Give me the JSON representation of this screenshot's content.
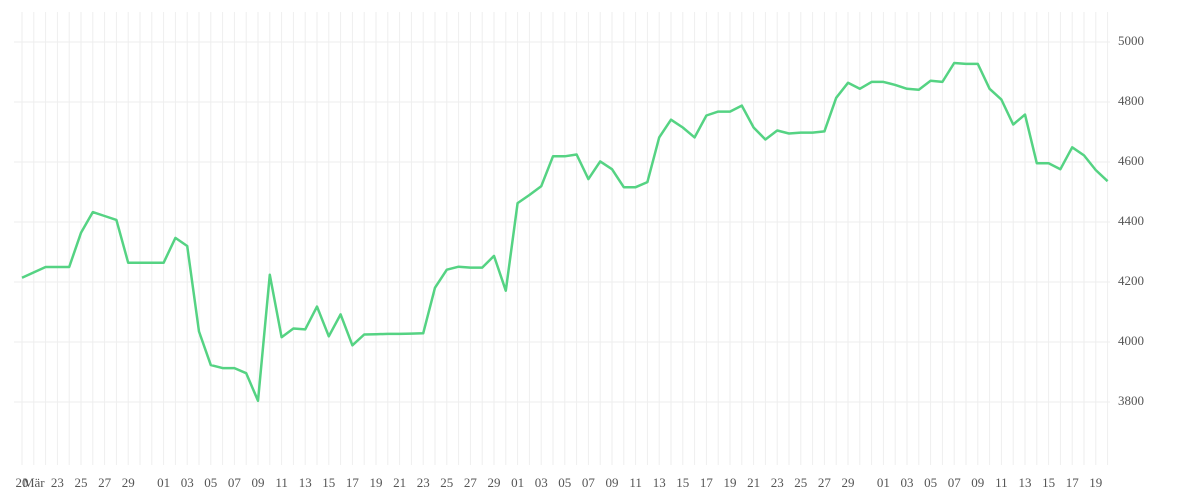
{
  "chart_data": {
    "type": "line",
    "categories": [
      "20",
      "Mär",
      null,
      "23",
      null,
      "25",
      null,
      "27",
      null,
      "29",
      null,
      null,
      "01",
      null,
      "03",
      null,
      "05",
      null,
      "07",
      null,
      "09",
      null,
      "11",
      null,
      "13",
      null,
      "15",
      null,
      "17",
      null,
      "19",
      null,
      "21",
      null,
      "23",
      null,
      "25",
      null,
      "27",
      null,
      "29",
      null,
      "01",
      null,
      "03",
      null,
      "05",
      null,
      "07",
      null,
      "09",
      null,
      "11",
      null,
      "13",
      null,
      "15",
      null,
      "17",
      null,
      "19",
      null,
      "21",
      null,
      "23",
      null,
      "25",
      null,
      "27",
      null,
      "29",
      null,
      null,
      "01",
      null,
      "03",
      null,
      "05",
      null,
      "07",
      null,
      "09",
      null,
      "11",
      null,
      "13",
      null,
      "15",
      null,
      "17",
      null,
      "19",
      null
    ],
    "series": [
      {
        "color": "#55d383",
        "values": [
          4214,
          4232,
          4250,
          4250,
          4250,
          4364,
          4433,
          4420,
          4407,
          4264,
          4264,
          4264,
          4264,
          4347,
          4320,
          4035,
          3923,
          3913,
          3913,
          3896,
          3804,
          4224,
          4016,
          4045,
          4042,
          4118,
          4019,
          4092,
          3989,
          4025,
          4026,
          4027,
          4027,
          4028,
          4029,
          4181,
          4241,
          4251,
          4248,
          4248,
          4287,
          4171,
          4463,
          4490,
          4519,
          4619,
          4619,
          4625,
          4543,
          4602,
          4576,
          4516,
          4516,
          4533,
          4682,
          4741,
          4715,
          4682,
          4755,
          4768,
          4768,
          4788,
          4715,
          4675,
          4705,
          4695,
          4698,
          4698,
          4702,
          4814,
          4864,
          4844,
          4867,
          4867,
          4857,
          4844,
          4841,
          4871,
          4867,
          4930,
          4927,
          4927,
          4844,
          4808,
          4725,
          4758,
          4596,
          4596,
          4576,
          4649,
          4622,
          4573,
          4536
        ]
      }
    ],
    "ylim": [
      3590,
      5100
    ],
    "yticks": [
      3800,
      4000,
      4200,
      4400,
      4600,
      4800,
      5000
    ],
    "grid": true
  }
}
